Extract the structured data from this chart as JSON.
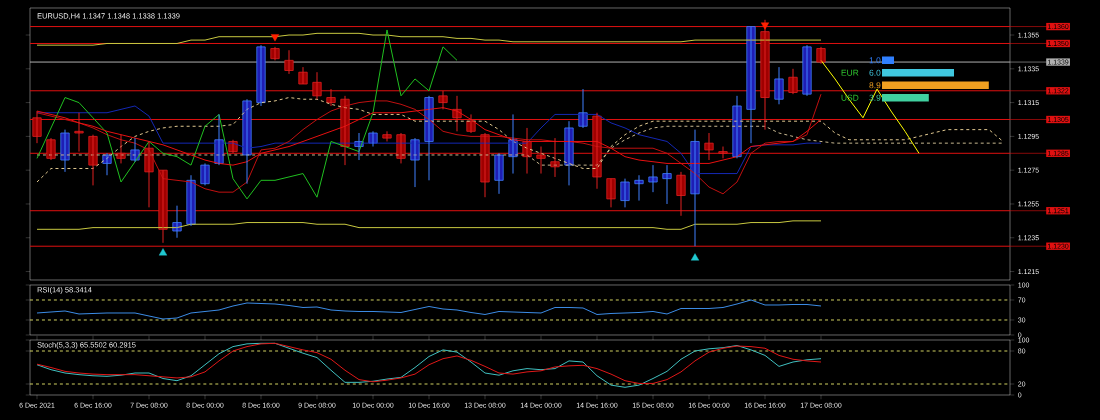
{
  "chart_data": [
    {
      "type": "candlestick",
      "title": "EURUSD,H4 1.1347 1.1348 1.1338 1.1339",
      "categories": [
        null,
        null,
        null,
        null,
        null,
        null,
        null,
        null,
        null,
        null,
        null,
        null,
        null,
        null,
        null,
        null,
        null,
        null,
        null,
        null,
        null,
        null,
        null,
        null,
        null,
        null,
        null,
        null,
        null,
        null,
        null,
        null,
        null,
        null,
        null,
        null,
        null,
        null,
        null,
        null,
        null,
        null,
        null,
        null,
        null,
        null,
        null,
        null,
        null,
        null,
        null,
        null,
        null,
        null,
        null,
        null,
        null,
        null,
        null,
        null,
        null,
        null,
        null,
        null,
        null,
        null,
        null,
        null,
        null,
        null
      ],
      "tick_labels": "y",
      "ylim": [
        1.121,
        1.1371
      ],
      "yticks": [
        1.1215,
        1.1235,
        1.1255,
        1.1275,
        1.1295,
        1.1315,
        1.1335,
        1.1355
      ],
      "ohlc": [
        [
          1.1306,
          1.131,
          1.1291,
          1.1295
        ],
        [
          1.1293,
          1.1294,
          1.1281,
          1.1282
        ],
        [
          1.1281,
          1.1299,
          1.1274,
          1.1297
        ],
        [
          1.1298,
          1.1309,
          1.1286,
          1.1297
        ],
        [
          1.1295,
          1.1296,
          1.1266,
          1.1278
        ],
        [
          1.1279,
          1.1285,
          1.1272,
          1.1284
        ],
        [
          1.1285,
          1.1296,
          1.1279,
          1.1282
        ],
        [
          1.1281,
          1.1294,
          1.128,
          1.1287
        ],
        [
          1.1288,
          1.1292,
          1.1253,
          1.1274
        ],
        [
          1.1275,
          1.1275,
          1.1232,
          1.124
        ],
        [
          1.1239,
          1.1254,
          1.1235,
          1.1244
        ],
        [
          1.1243,
          1.1272,
          1.1242,
          1.1269
        ],
        [
          1.1267,
          1.1279,
          1.1266,
          1.1278
        ],
        [
          1.1279,
          1.1308,
          1.1278,
          1.1293
        ],
        [
          1.1292,
          1.1293,
          1.1285,
          1.1286
        ],
        [
          1.1284,
          1.1317,
          1.1267,
          1.1316
        ],
        [
          1.1315,
          1.1349,
          1.1313,
          1.1348
        ],
        [
          1.1347,
          1.1348,
          1.134,
          1.1341
        ],
        [
          1.134,
          1.1346,
          1.1332,
          1.1334
        ],
        [
          1.1333,
          1.1336,
          1.1326,
          1.1326
        ],
        [
          1.1327,
          1.1333,
          1.1317,
          1.1319
        ],
        [
          1.1318,
          1.1323,
          1.1313,
          1.1315
        ],
        [
          1.1317,
          1.1319,
          1.1278,
          1.1289
        ],
        [
          1.1289,
          1.1297,
          1.1281,
          1.1292
        ],
        [
          1.1291,
          1.1298,
          1.1289,
          1.1297
        ],
        [
          1.1296,
          1.1298,
          1.1292,
          1.1294
        ],
        [
          1.1296,
          1.1297,
          1.1279,
          1.1282
        ],
        [
          1.1281,
          1.1294,
          1.1265,
          1.1293
        ],
        [
          1.1292,
          1.1319,
          1.1269,
          1.1318
        ],
        [
          1.1319,
          1.1322,
          1.1311,
          1.1315
        ],
        [
          1.1311,
          1.1319,
          1.1298,
          1.1306
        ],
        [
          1.1304,
          1.1308,
          1.1297,
          1.1298
        ],
        [
          1.1296,
          1.1297,
          1.1259,
          1.1268
        ],
        [
          1.1269,
          1.1285,
          1.1261,
          1.1284
        ],
        [
          1.1283,
          1.1308,
          1.1273,
          1.1293
        ],
        [
          1.1292,
          1.13,
          1.1273,
          1.1283
        ],
        [
          1.1284,
          1.1289,
          1.1273,
          1.1282
        ],
        [
          1.128,
          1.1294,
          1.1271,
          1.1277
        ],
        [
          1.1278,
          1.1304,
          1.1266,
          1.13
        ],
        [
          1.1301,
          1.1323,
          1.13,
          1.1309
        ],
        [
          1.1307,
          1.1309,
          1.1264,
          1.1271
        ],
        [
          1.127,
          1.127,
          1.1253,
          1.1258
        ],
        [
          1.1257,
          1.127,
          1.1253,
          1.1268
        ],
        [
          1.1267,
          1.1272,
          1.1257,
          1.1269
        ],
        [
          1.1268,
          1.1278,
          1.1262,
          1.1271
        ],
        [
          1.127,
          1.1278,
          1.1255,
          1.1273
        ],
        [
          1.1272,
          1.1274,
          1.1248,
          1.126
        ],
        [
          1.1261,
          1.1299,
          1.123,
          1.1292
        ],
        [
          1.1291,
          1.1297,
          1.1281,
          1.1287
        ],
        [
          1.1286,
          1.1289,
          1.1282,
          1.1285
        ],
        [
          1.1283,
          1.1319,
          1.1282,
          1.1313
        ],
        [
          1.1311,
          1.136,
          1.1291,
          1.136
        ],
        [
          1.1357,
          1.1364,
          1.1299,
          1.1318
        ],
        [
          1.1317,
          1.1336,
          1.1314,
          1.1329
        ],
        [
          1.133,
          1.1335,
          1.132,
          1.1321
        ],
        [
          1.132,
          1.1349,
          1.1319,
          1.1348
        ],
        [
          1.1347,
          1.1348,
          1.1338,
          1.1339
        ],
        null,
        null,
        null,
        null,
        null,
        null,
        null,
        null,
        null,
        null,
        null,
        null,
        null
      ],
      "series": [
        {
          "type": "line",
          "color": "#e0c890",
          "line_style": "dashed",
          "values": [
            1.1268,
            1.1276,
            1.1276,
            1.1276,
            1.1276,
            1.1282,
            1.1289,
            1.1295,
            1.1298,
            1.13,
            1.1301,
            1.1301,
            1.1301,
            1.1301,
            1.1302,
            1.1311,
            1.1315,
            1.1316,
            1.1318,
            1.1317,
            1.1317,
            1.1314,
            1.1312,
            1.1311,
            1.1308,
            1.1308,
            1.1308,
            1.1304,
            1.1304,
            1.1304,
            1.1304,
            1.1304,
            1.1304,
            1.1299,
            1.1292,
            1.1288,
            1.1285,
            1.1282,
            1.1279,
            1.1276,
            1.1276,
            1.1289,
            1.1296,
            1.1301,
            1.1304,
            1.1304,
            1.1304,
            1.1304,
            1.1304,
            1.1304,
            1.1304,
            1.1304,
            1.1304,
            1.1304,
            1.1304,
            1.1304,
            1.1304,
            1.1297,
            1.1293,
            1.1293,
            1.1293,
            1.1293,
            1.1293,
            1.1295,
            1.1297,
            1.1299,
            1.1299,
            1.1299,
            1.1299,
            1.1292
          ]
        },
        {
          "type": "line",
          "color": "#c8b890",
          "line_style": "dashed",
          "values": [
            1.1284,
            1.1284,
            1.1284,
            1.1284,
            1.1284,
            1.1284,
            1.1284,
            1.1284,
            1.1284,
            1.1284,
            1.1284,
            1.1284,
            1.1284,
            1.1284,
            1.1284,
            1.1284,
            1.1284,
            1.1284,
            1.1284,
            1.1284,
            1.1284,
            1.1284,
            1.1284,
            1.1284,
            1.1284,
            1.1284,
            1.1284,
            1.1284,
            1.1284,
            1.1284,
            1.1284,
            1.1284,
            1.1284,
            1.1284,
            1.1284,
            1.1284,
            1.1278,
            1.1278,
            1.1278,
            1.1278,
            1.1278,
            1.1288,
            1.1293,
            1.1297,
            1.13,
            1.1301,
            1.1301,
            1.1301,
            1.1301,
            1.1301,
            1.1301,
            1.1301,
            1.1301,
            1.1297,
            1.1295,
            1.1293,
            1.1292,
            1.1291,
            1.1291,
            1.1291,
            1.1291,
            1.1291,
            1.1291,
            1.1291,
            1.1291,
            1.1291,
            1.1291,
            1.1291,
            1.1291,
            1.1291
          ]
        },
        {
          "type": "line",
          "color": "#c8c840",
          "values": [
            1.1349,
            1.1349,
            1.1349,
            1.1349,
            1.1349,
            1.135,
            1.135,
            1.135,
            1.135,
            1.135,
            1.135,
            1.1352,
            1.1352,
            1.1354,
            1.1354,
            1.1354,
            1.1354,
            1.1354,
            1.1355,
            1.1355,
            1.1356,
            1.1356,
            1.1356,
            1.1356,
            1.1355,
            1.1355,
            1.1354,
            1.1354,
            1.1354,
            1.1354,
            1.1353,
            1.1353,
            1.1352,
            1.1352,
            1.1351,
            1.1351,
            1.1351,
            1.1351,
            1.1351,
            1.1351,
            1.1351,
            1.1351,
            1.1351,
            1.1351,
            1.1351,
            1.1351,
            1.1351,
            1.1352,
            1.1352,
            1.1352,
            1.1352,
            1.1352,
            1.1352,
            1.1352,
            1.1352,
            1.1352,
            1.1352,
            null,
            null,
            null,
            null,
            null,
            null,
            null,
            null,
            null,
            null,
            null,
            null,
            null
          ]
        },
        {
          "type": "line",
          "color": "#c8c840",
          "values": [
            1.124,
            1.124,
            1.124,
            1.124,
            1.1241,
            1.1241,
            1.1241,
            1.1241,
            1.1241,
            1.1241,
            1.1241,
            1.1243,
            1.1243,
            1.1243,
            1.1243,
            1.1244,
            1.1244,
            1.1244,
            1.1244,
            1.1244,
            1.1243,
            1.1243,
            1.1243,
            1.1241,
            1.1241,
            1.1241,
            1.1241,
            1.1241,
            1.1241,
            1.1241,
            1.1241,
            1.1241,
            1.1241,
            1.1241,
            1.1241,
            1.1241,
            1.1241,
            1.1241,
            1.1241,
            1.1241,
            1.1241,
            1.1241,
            1.1241,
            1.1241,
            1.1241,
            1.124,
            1.124,
            1.1243,
            1.1243,
            1.1243,
            1.1243,
            1.1244,
            1.1244,
            1.1244,
            1.1245,
            1.1245,
            1.1245,
            null,
            null,
            null,
            null,
            null,
            null,
            null,
            null,
            null,
            null,
            null,
            null,
            null
          ]
        },
        {
          "type": "line",
          "color": "#1428b4",
          "values": [
            1.1309,
            1.1309,
            1.1309,
            1.1309,
            1.1309,
            1.1309,
            1.1311,
            1.1313,
            1.1307,
            1.1291,
            1.1291,
            1.1291,
            1.1291,
            1.1291,
            1.1291,
            1.1288,
            1.1289,
            1.1291,
            1.1291,
            1.1291,
            1.1291,
            1.1291,
            1.1291,
            1.1291,
            1.1291,
            1.1291,
            1.1291,
            1.1291,
            1.1291,
            1.1291,
            1.1291,
            1.1291,
            1.1291,
            1.1291,
            1.1291,
            1.1291,
            1.13,
            1.1308,
            1.1308,
            1.1308,
            1.1308,
            1.1303,
            1.13,
            1.1296,
            1.1294,
            1.1292,
            1.1285,
            1.1273,
            1.1273,
            1.1273,
            1.1273,
            1.1289,
            1.129,
            1.129,
            1.129,
            1.1291,
            1.1291,
            null,
            null,
            null,
            null,
            null,
            null,
            null,
            null,
            null,
            null,
            null,
            null,
            null
          ]
        },
        {
          "type": "line",
          "color": "#c01010",
          "values": [
            1.1309,
            1.1307,
            1.1305,
            1.1303,
            1.13,
            1.1296,
            1.1293,
            1.1291,
            1.1287,
            1.127,
            1.1269,
            1.1268,
            1.1264,
            1.1262,
            1.1262,
            1.1268,
            1.1287,
            1.1288,
            1.1292,
            1.1299,
            1.1305,
            1.131,
            1.1313,
            1.1315,
            1.1316,
            1.1316,
            1.1314,
            1.1311,
            1.1305,
            1.1298,
            1.1296,
            1.1295,
            1.1295,
            1.1295,
            1.1294,
            1.1293,
            1.1293,
            1.1292,
            1.1292,
            1.1291,
            1.1289,
            1.1288,
            1.1288,
            1.1288,
            1.1288,
            1.1285,
            1.1279,
            1.1273,
            1.1265,
            1.1261,
            1.1268,
            1.1285,
            1.1291,
            1.1292,
            1.1292,
            1.1296,
            1.132,
            null,
            null,
            null,
            null,
            null,
            null,
            null,
            null,
            null,
            null,
            null,
            null,
            null
          ]
        },
        {
          "type": "line",
          "color": "#20c020",
          "values": [
            1.1282,
            1.13,
            1.1318,
            1.1315,
            1.1306,
            1.1297,
            1.1268,
            1.128,
            1.1292,
            1.1285,
            1.1283,
            1.1278,
            1.1301,
            1.1308,
            1.127,
            1.1258,
            1.1269,
            1.1269,
            1.1271,
            1.1273,
            1.1259,
            1.1292,
            1.1289,
            1.1286,
            1.1309,
            1.1358,
            1.1319,
            1.1329,
            1.1322,
            1.1348,
            1.134,
            null,
            null,
            null,
            null,
            null,
            null,
            null,
            null,
            null,
            null,
            null,
            null,
            null,
            null,
            null,
            null,
            null,
            null,
            null,
            null,
            null,
            null,
            null,
            null,
            null,
            null,
            null,
            null,
            null,
            null,
            null,
            null,
            null,
            null,
            null,
            null,
            null,
            null,
            null
          ]
        },
        {
          "type": "line",
          "color": "#e81010",
          "values": [
            1.131,
            1.1308,
            1.1306,
            1.1303,
            1.1301,
            1.1298,
            1.1296,
            1.1294,
            1.1292,
            1.129,
            1.1287,
            1.1284,
            1.1281,
            1.1279,
            1.1278,
            1.128,
            1.1285,
            1.1287,
            1.1289,
            1.1292,
            1.1295,
            1.1298,
            1.1301,
            1.1305,
            1.1309,
            1.1309,
            1.1309,
            1.131,
            1.1311,
            1.1312,
            1.131,
            1.1305,
            1.1299,
            1.1296,
            1.1293,
            1.1292,
            1.1292,
            1.1292,
            1.1292,
            1.1292,
            1.1292,
            1.1288,
            1.1283,
            1.1281,
            1.128,
            1.1279,
            1.1279,
            1.1279,
            1.1279,
            1.1281,
            1.1283,
            1.1289,
            1.129,
            1.1291,
            1.1292,
            1.1298,
            1.1305,
            null,
            null,
            null,
            null,
            null,
            null,
            null,
            null,
            null,
            null,
            null,
            null,
            null
          ]
        },
        {
          "type": "line",
          "color": "#ffff00",
          "values": [
            null,
            null,
            null,
            null,
            null,
            null,
            null,
            null,
            null,
            null,
            null,
            null,
            null,
            null,
            null,
            null,
            null,
            null,
            null,
            null,
            null,
            null,
            null,
            null,
            null,
            null,
            null,
            null,
            null,
            null,
            null,
            null,
            null,
            null,
            null,
            null,
            null,
            null,
            null,
            null,
            null,
            null,
            null,
            null,
            null,
            null,
            null,
            null,
            null,
            null,
            null,
            null,
            null,
            null,
            null,
            null,
            1.134,
            1.1329,
            1.1317,
            1.1306,
            1.1323,
            1.131,
            1.1298,
            1.1285,
            null,
            null,
            null,
            null,
            null,
            null
          ]
        },
        {
          "type": "scatter",
          "marker": "triangle",
          "color": "#20c8d0",
          "values": [
            null,
            null,
            null,
            null,
            null,
            null,
            null,
            null,
            null,
            1.1226,
            null,
            null,
            null,
            null,
            null,
            null,
            null,
            null,
            null,
            null,
            null,
            null,
            null,
            null,
            null,
            null,
            null,
            null,
            null,
            null,
            null,
            null,
            null,
            null,
            null,
            null,
            null,
            null,
            null,
            null,
            null,
            null,
            null,
            null,
            null,
            null,
            null,
            1.1223,
            null,
            null,
            null,
            null,
            null,
            null,
            null,
            null,
            null,
            null,
            null,
            null,
            null,
            null,
            null,
            null,
            null,
            null,
            null,
            null,
            null,
            null
          ]
        },
        {
          "type": "scatter",
          "marker": "triangle",
          "color": "#ff2000",
          "values": [
            null,
            null,
            null,
            null,
            null,
            null,
            null,
            null,
            null,
            null,
            null,
            null,
            null,
            null,
            null,
            null,
            null,
            1.1354,
            null,
            null,
            null,
            null,
            null,
            null,
            null,
            null,
            null,
            null,
            null,
            null,
            null,
            null,
            null,
            null,
            null,
            null,
            null,
            null,
            null,
            null,
            null,
            null,
            null,
            null,
            null,
            null,
            null,
            null,
            null,
            null,
            null,
            null,
            1.1361,
            null,
            null,
            null,
            null,
            null,
            null,
            null,
            null,
            null,
            null,
            null,
            null,
            null,
            null,
            null,
            null,
            null
          ]
        }
      ],
      "ref_lines": [
        {
          "axis": "y",
          "value": 1.136,
          "label": "1.1360",
          "color": "#e01010"
        },
        {
          "axis": "y",
          "value": 1.135,
          "label": "1.1350",
          "color": "#e01010"
        },
        {
          "axis": "y",
          "value": 1.1339,
          "label": "1.1339",
          "color": "#b0b0b0"
        },
        {
          "axis": "y",
          "value": 1.1322,
          "label": "1.1322",
          "color": "#e01010"
        },
        {
          "axis": "y",
          "value": 1.1305,
          "label": "1.1305",
          "color": "#e01010"
        },
        {
          "axis": "y",
          "value": 1.1285,
          "label": "1.1285",
          "color": "#e01010"
        },
        {
          "axis": "y",
          "value": 1.1251,
          "label": "1.1251",
          "color": "#e01010"
        },
        {
          "axis": "y",
          "value": 1.123,
          "label": "1.1230",
          "color": "#e01010"
        }
      ]
    },
    {
      "type": "line",
      "title": "RSI(14) 58.3414",
      "categories": [
        null,
        null,
        null,
        null,
        null,
        null,
        null,
        null,
        null,
        null,
        null,
        null,
        null,
        null,
        null,
        null,
        null,
        null,
        null,
        null,
        null,
        null,
        null,
        null,
        null,
        null,
        null,
        null,
        null,
        null,
        null,
        null,
        null,
        null,
        null,
        null,
        null,
        null,
        null,
        null,
        null,
        null,
        null,
        null,
        null,
        null,
        null,
        null,
        null,
        null,
        null,
        null,
        null,
        null,
        null,
        null,
        null,
        null,
        null,
        null,
        null,
        null,
        null,
        null,
        null,
        null,
        null,
        null,
        null,
        null
      ],
      "tick_labels": "y",
      "ylim": [
        0,
        100
      ],
      "yticks": [
        0,
        30,
        70,
        100
      ],
      "series": [
        {
          "color": "#3c8ce6",
          "values": [
            44,
            46,
            48,
            42,
            43,
            44,
            44,
            44,
            38,
            32,
            34,
            44,
            47,
            50,
            58,
            64,
            63,
            62,
            59,
            55,
            56,
            50,
            48,
            47,
            47,
            46,
            45,
            51,
            57,
            52,
            50,
            45,
            41,
            47,
            46,
            45,
            44,
            55,
            55,
            54,
            41,
            43,
            44,
            45,
            47,
            42,
            53,
            53,
            53,
            55,
            62,
            70,
            60,
            60,
            61,
            61,
            58,
            null,
            null,
            null,
            null,
            null,
            null,
            null,
            null,
            null,
            null,
            null,
            null,
            null
          ]
        }
      ],
      "ref_lines": [
        {
          "axis": "y",
          "value": 70,
          "color": "#d0d060",
          "line_style": "dashed"
        },
        {
          "axis": "y",
          "value": 30,
          "color": "#d0d060",
          "line_style": "dashed"
        }
      ]
    },
    {
      "type": "line",
      "title": "Stoch(5,3,3) 65.5502 60.2915",
      "categories": [
        "6 Dec 2021",
        null,
        null,
        null,
        "6 Dec 16:00",
        null,
        null,
        null,
        "7 Dec 08:00",
        null,
        null,
        null,
        "8 Dec 00:00",
        null,
        null,
        null,
        "8 Dec 16:00",
        null,
        null,
        null,
        "9 Dec 08:00",
        null,
        null,
        null,
        "10 Dec 00:00",
        null,
        null,
        null,
        "10 Dec 16:00",
        null,
        null,
        null,
        "13 Dec 08:00",
        null,
        null,
        null,
        "14 Dec 00:00",
        null,
        null,
        null,
        "14 Dec 16:00",
        null,
        null,
        null,
        "15 Dec 08:00",
        null,
        null,
        null,
        "16 Dec 00:00",
        null,
        null,
        null,
        "16 Dec 16:00",
        null,
        null,
        null,
        "17 Dec 08:00",
        null,
        null,
        null,
        null,
        null,
        null,
        null,
        null,
        null,
        null,
        null,
        null,
        null
      ],
      "ylim": [
        0,
        100
      ],
      "yticks": [
        0,
        20,
        80,
        100
      ],
      "series": [
        {
          "color": "#40c0c0",
          "values": [
            55,
            46,
            40,
            37,
            35,
            34,
            36,
            40,
            40,
            30,
            26,
            35,
            55,
            75,
            88,
            93,
            94,
            94,
            85,
            76,
            68,
            45,
            23,
            23,
            25,
            29,
            32,
            50,
            70,
            82,
            78,
            60,
            40,
            36,
            44,
            48,
            46,
            48,
            62,
            60,
            35,
            18,
            14,
            18,
            30,
            43,
            65,
            80,
            84,
            86,
            90,
            82,
            72,
            52,
            60,
            64,
            66,
            null,
            null,
            null,
            null,
            null,
            null,
            null,
            null,
            null,
            null,
            null,
            null,
            null
          ]
        },
        {
          "color": "#e01818",
          "values": [
            56,
            50,
            43,
            40,
            38,
            37,
            37,
            37,
            35,
            33,
            31,
            33,
            42,
            62,
            80,
            88,
            93,
            94,
            88,
            82,
            77,
            65,
            45,
            28,
            24,
            27,
            31,
            38,
            55,
            66,
            71,
            63,
            52,
            40,
            38,
            42,
            44,
            51,
            53,
            54,
            48,
            38,
            26,
            21,
            21,
            28,
            42,
            62,
            78,
            85,
            89,
            88,
            85,
            72,
            65,
            62,
            60,
            null,
            null,
            null,
            null,
            null,
            null,
            null,
            null,
            null,
            null,
            null,
            null,
            null
          ]
        }
      ],
      "ref_lines": [
        {
          "axis": "y",
          "value": 80,
          "color": "#d0d060",
          "line_style": "dashed"
        },
        {
          "axis": "y",
          "value": 20,
          "color": "#d0d060",
          "line_style": "dashed"
        }
      ]
    },
    {
      "type": "bar",
      "orientation": "horizontal",
      "categories": [
        null,
        null,
        null,
        null
      ],
      "values": [
        1.0,
        6.0,
        8.9,
        3.9
      ],
      "value_labels": [
        "1.0",
        "6.0",
        "8.9",
        "3.9"
      ],
      "colors": [
        "#3080ff",
        "#40c8e0",
        "#f0a020",
        "#40d0a0"
      ],
      "xlim": [
        0,
        9
      ],
      "tick_labels": false,
      "annotations": [
        "EUR",
        "USD"
      ]
    }
  ]
}
